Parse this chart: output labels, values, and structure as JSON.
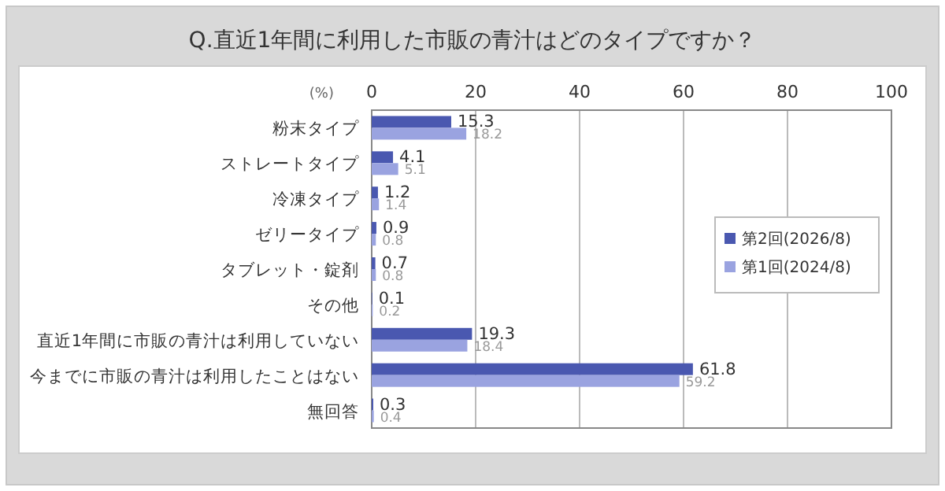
{
  "chart_data": {
    "type": "bar",
    "orientation": "horizontal",
    "title": "Q.直近1年間に利用した市販の青汁はどのタイプですか？",
    "xlabel": "(%)",
    "categories": [
      "粉末タイプ",
      "ストレートタイプ",
      "冷凍タイプ",
      "ゼリータイプ",
      "タブレット・錠剤",
      "その他",
      "直近1年間に市販の青汁は利用していない",
      "今までに市販の青汁は利用したことはない",
      "無回答"
    ],
    "series": [
      {
        "name": "第2回(2026/8)",
        "color": "#4a58b0",
        "values": [
          15.3,
          4.1,
          1.2,
          0.9,
          0.7,
          0.1,
          19.3,
          61.8,
          0.3
        ]
      },
      {
        "name": "第1回(2024/8)",
        "color": "#9aa3e0",
        "values": [
          18.2,
          5.1,
          1.4,
          0.8,
          0.8,
          0.2,
          18.4,
          59.2,
          0.4
        ]
      }
    ],
    "xlim": [
      0,
      100
    ],
    "xticks": [
      0,
      20,
      40,
      60,
      80,
      100
    ],
    "grid": "x",
    "legend": "top right",
    "data_labels": true
  }
}
